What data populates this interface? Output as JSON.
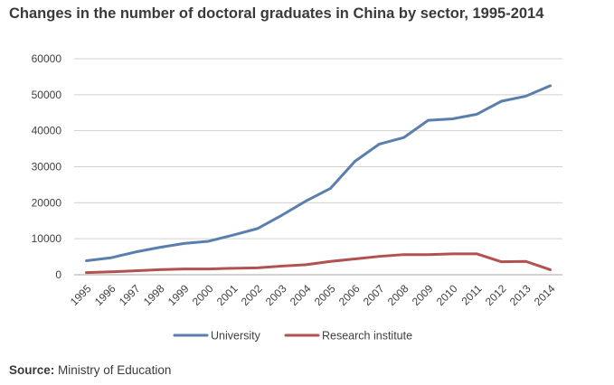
{
  "chart_data": {
    "type": "line",
    "title": "Changes in the number of doctoral graduates in China by sector, 1995-2014",
    "xlabel": "",
    "ylabel": "",
    "x": [
      "1995",
      "1996",
      "1997",
      "1998",
      "1999",
      "2000",
      "2001",
      "2002",
      "2003",
      "2004",
      "2005",
      "2006",
      "2007",
      "2008",
      "2009",
      "2010",
      "2011",
      "2012",
      "2013",
      "2014"
    ],
    "ylim": [
      0,
      60000
    ],
    "yticks": [
      0,
      10000,
      20000,
      30000,
      40000,
      50000,
      60000
    ],
    "ytick_labels": [
      "0",
      "10000",
      "20000",
      "30000",
      "40000",
      "50000",
      "60000"
    ],
    "grid": "horizontal",
    "legend_position": "bottom",
    "series": [
      {
        "name": "University",
        "color": "#5b7fad",
        "values": [
          3900,
          4700,
          6300,
          7600,
          8700,
          9300,
          11000,
          12800,
          16500,
          20500,
          24000,
          31500,
          36300,
          38100,
          42900,
          43300,
          44600,
          48200,
          49600,
          52500
        ]
      },
      {
        "name": "Research institute",
        "color": "#b15150",
        "values": [
          600,
          800,
          1100,
          1400,
          1600,
          1600,
          1800,
          1900,
          2400,
          2800,
          3700,
          4400,
          5100,
          5600,
          5600,
          5800,
          5800,
          3600,
          3700,
          1400
        ]
      }
    ]
  },
  "source": {
    "label": "Source:",
    "text": "Ministry of Education"
  }
}
